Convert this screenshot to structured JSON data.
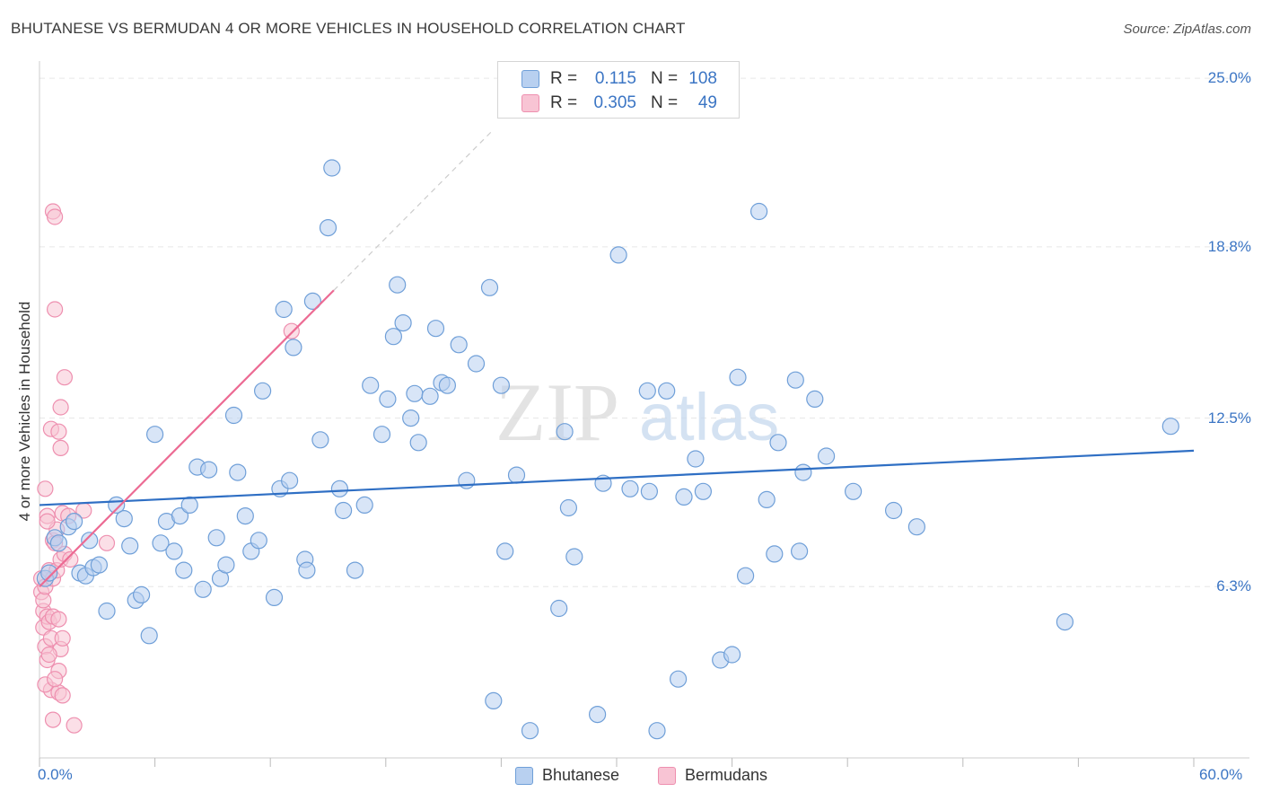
{
  "title": "BHUTANESE VS BERMUDAN 4 OR MORE VEHICLES IN HOUSEHOLD CORRELATION CHART",
  "source": "Source: ZipAtlas.com",
  "watermark": {
    "zip": "ZIP",
    "atlas": "atlas"
  },
  "colors": {
    "bhutanese_fill": "#b8d0f0",
    "bhutanese_stroke": "#6f9fd8",
    "bhutanese_line": "#2f6fc4",
    "bermudan_fill": "#f8c4d4",
    "bermudan_stroke": "#ee8faf",
    "bermudan_line": "#ec6a93",
    "tick_text": "#3b75c4",
    "grid": "#e6e6e6"
  },
  "legend_top": {
    "rows": [
      {
        "r_label": "R =",
        "r_value": "0.115",
        "n_label": "N =",
        "n_value": "108"
      },
      {
        "r_label": "R =",
        "r_value": "0.305",
        "n_label": "N =",
        "n_value": "49"
      }
    ]
  },
  "legend_bottom": {
    "items": [
      "Bhutanese",
      "Bermudans"
    ]
  },
  "chart_data": {
    "type": "scatter",
    "title": "BHUTANESE VS BERMUDAN 4 OR MORE VEHICLES IN HOUSEHOLD CORRELATION CHART",
    "xlabel": "",
    "ylabel": "4 or more Vehicles in Household",
    "xlim": [
      0,
      60
    ],
    "ylim": [
      0,
      25.5
    ],
    "x_tick_labels": [
      "0.0%",
      "60.0%"
    ],
    "y_ticks": [
      6.3,
      12.5,
      18.8,
      25.0
    ],
    "y_tick_labels": [
      "6.3%",
      "12.5%",
      "18.8%",
      "25.0%"
    ],
    "grid": true,
    "legend_position": "bottom",
    "series": [
      {
        "name": "Bhutanese",
        "r": 0.115,
        "n": 108,
        "trend": {
          "x0": 0,
          "y0": 9.3,
          "x1": 60,
          "y1": 11.3
        },
        "points": [
          [
            0.3,
            6.6
          ],
          [
            0.5,
            6.8
          ],
          [
            0.8,
            8.1
          ],
          [
            1.0,
            7.9
          ],
          [
            1.5,
            8.5
          ],
          [
            1.8,
            8.7
          ],
          [
            2.1,
            6.8
          ],
          [
            2.4,
            6.7
          ],
          [
            2.6,
            8.0
          ],
          [
            2.8,
            7.0
          ],
          [
            3.1,
            7.1
          ],
          [
            3.5,
            5.4
          ],
          [
            4.0,
            9.3
          ],
          [
            4.4,
            8.8
          ],
          [
            4.7,
            7.8
          ],
          [
            5.0,
            5.8
          ],
          [
            5.3,
            6.0
          ],
          [
            5.7,
            4.5
          ],
          [
            6.0,
            11.9
          ],
          [
            6.3,
            7.9
          ],
          [
            6.6,
            8.7
          ],
          [
            7.0,
            7.6
          ],
          [
            7.3,
            8.9
          ],
          [
            7.5,
            6.9
          ],
          [
            7.8,
            9.3
          ],
          [
            8.2,
            10.7
          ],
          [
            8.5,
            6.2
          ],
          [
            8.8,
            10.6
          ],
          [
            9.2,
            8.1
          ],
          [
            9.4,
            6.6
          ],
          [
            9.7,
            7.1
          ],
          [
            10.1,
            12.6
          ],
          [
            10.3,
            10.5
          ],
          [
            10.7,
            8.9
          ],
          [
            11.0,
            7.6
          ],
          [
            11.4,
            8.0
          ],
          [
            11.6,
            13.5
          ],
          [
            12.2,
            5.9
          ],
          [
            12.5,
            9.9
          ],
          [
            12.7,
            16.5
          ],
          [
            13.0,
            10.2
          ],
          [
            13.2,
            15.1
          ],
          [
            13.8,
            7.3
          ],
          [
            13.9,
            6.9
          ],
          [
            14.2,
            16.8
          ],
          [
            14.6,
            11.7
          ],
          [
            15.0,
            19.5
          ],
          [
            15.2,
            21.7
          ],
          [
            15.6,
            9.9
          ],
          [
            15.8,
            9.1
          ],
          [
            16.4,
            6.9
          ],
          [
            16.9,
            9.3
          ],
          [
            17.2,
            13.7
          ],
          [
            17.8,
            11.9
          ],
          [
            18.1,
            13.2
          ],
          [
            18.4,
            15.5
          ],
          [
            18.6,
            17.4
          ],
          [
            18.9,
            16.0
          ],
          [
            19.3,
            12.5
          ],
          [
            19.5,
            13.4
          ],
          [
            19.7,
            11.6
          ],
          [
            20.3,
            13.3
          ],
          [
            20.6,
            15.8
          ],
          [
            20.9,
            13.8
          ],
          [
            21.2,
            13.7
          ],
          [
            21.8,
            15.2
          ],
          [
            22.2,
            10.2
          ],
          [
            22.7,
            14.5
          ],
          [
            23.4,
            17.3
          ],
          [
            23.6,
            2.1
          ],
          [
            24.0,
            13.7
          ],
          [
            24.2,
            7.6
          ],
          [
            24.8,
            10.4
          ],
          [
            25.5,
            1.0
          ],
          [
            27.0,
            5.5
          ],
          [
            27.3,
            12.0
          ],
          [
            27.5,
            9.2
          ],
          [
            27.8,
            7.4
          ],
          [
            29.0,
            1.6
          ],
          [
            29.3,
            10.1
          ],
          [
            30.1,
            18.5
          ],
          [
            30.7,
            9.9
          ],
          [
            31.6,
            13.5
          ],
          [
            31.7,
            9.8
          ],
          [
            32.1,
            1.0
          ],
          [
            32.6,
            13.5
          ],
          [
            33.2,
            2.9
          ],
          [
            33.5,
            9.6
          ],
          [
            34.1,
            11.0
          ],
          [
            34.5,
            9.8
          ],
          [
            35.4,
            3.6
          ],
          [
            36.0,
            3.8
          ],
          [
            36.3,
            14.0
          ],
          [
            36.7,
            6.7
          ],
          [
            37.4,
            20.1
          ],
          [
            37.8,
            9.5
          ],
          [
            38.2,
            7.5
          ],
          [
            38.4,
            11.6
          ],
          [
            39.3,
            13.9
          ],
          [
            39.5,
            7.6
          ],
          [
            39.7,
            10.5
          ],
          [
            40.3,
            13.2
          ],
          [
            40.9,
            11.1
          ],
          [
            42.3,
            9.8
          ],
          [
            44.4,
            9.1
          ],
          [
            45.6,
            8.5
          ],
          [
            53.3,
            5.0
          ],
          [
            58.8,
            12.2
          ]
        ]
      },
      {
        "name": "Bermudans",
        "r": 0.305,
        "n": 49,
        "trend": {
          "x0": 0,
          "y0": 6.3,
          "x1": 15.3,
          "y1": 17.2
        },
        "points": [
          [
            0.1,
            6.6
          ],
          [
            0.1,
            6.1
          ],
          [
            0.2,
            5.4
          ],
          [
            0.2,
            5.8
          ],
          [
            0.2,
            4.8
          ],
          [
            0.3,
            6.3
          ],
          [
            0.3,
            4.1
          ],
          [
            0.3,
            9.9
          ],
          [
            0.4,
            5.2
          ],
          [
            0.4,
            3.6
          ],
          [
            0.4,
            8.9
          ],
          [
            0.5,
            5.0
          ],
          [
            0.5,
            6.9
          ],
          [
            0.6,
            4.4
          ],
          [
            0.6,
            2.5
          ],
          [
            0.6,
            12.1
          ],
          [
            0.7,
            5.2
          ],
          [
            0.7,
            8.0
          ],
          [
            0.7,
            6.6
          ],
          [
            0.7,
            1.4
          ],
          [
            0.7,
            20.1
          ],
          [
            0.8,
            7.9
          ],
          [
            0.8,
            16.5
          ],
          [
            0.8,
            19.9
          ],
          [
            0.9,
            8.4
          ],
          [
            0.9,
            6.9
          ],
          [
            1.0,
            5.1
          ],
          [
            1.0,
            2.4
          ],
          [
            1.0,
            3.2
          ],
          [
            1.0,
            12.0
          ],
          [
            1.1,
            7.3
          ],
          [
            1.1,
            11.4
          ],
          [
            1.1,
            4.0
          ],
          [
            1.1,
            12.9
          ],
          [
            1.2,
            9.0
          ],
          [
            1.2,
            2.3
          ],
          [
            1.2,
            4.4
          ],
          [
            1.3,
            14.0
          ],
          [
            1.3,
            7.5
          ],
          [
            1.5,
            8.9
          ],
          [
            1.6,
            7.3
          ],
          [
            1.8,
            1.2
          ],
          [
            2.3,
            9.1
          ],
          [
            3.5,
            7.9
          ],
          [
            0.4,
            8.7
          ],
          [
            0.5,
            3.8
          ],
          [
            0.3,
            2.7
          ],
          [
            0.8,
            2.9
          ],
          [
            13.1,
            15.7
          ]
        ]
      }
    ]
  }
}
